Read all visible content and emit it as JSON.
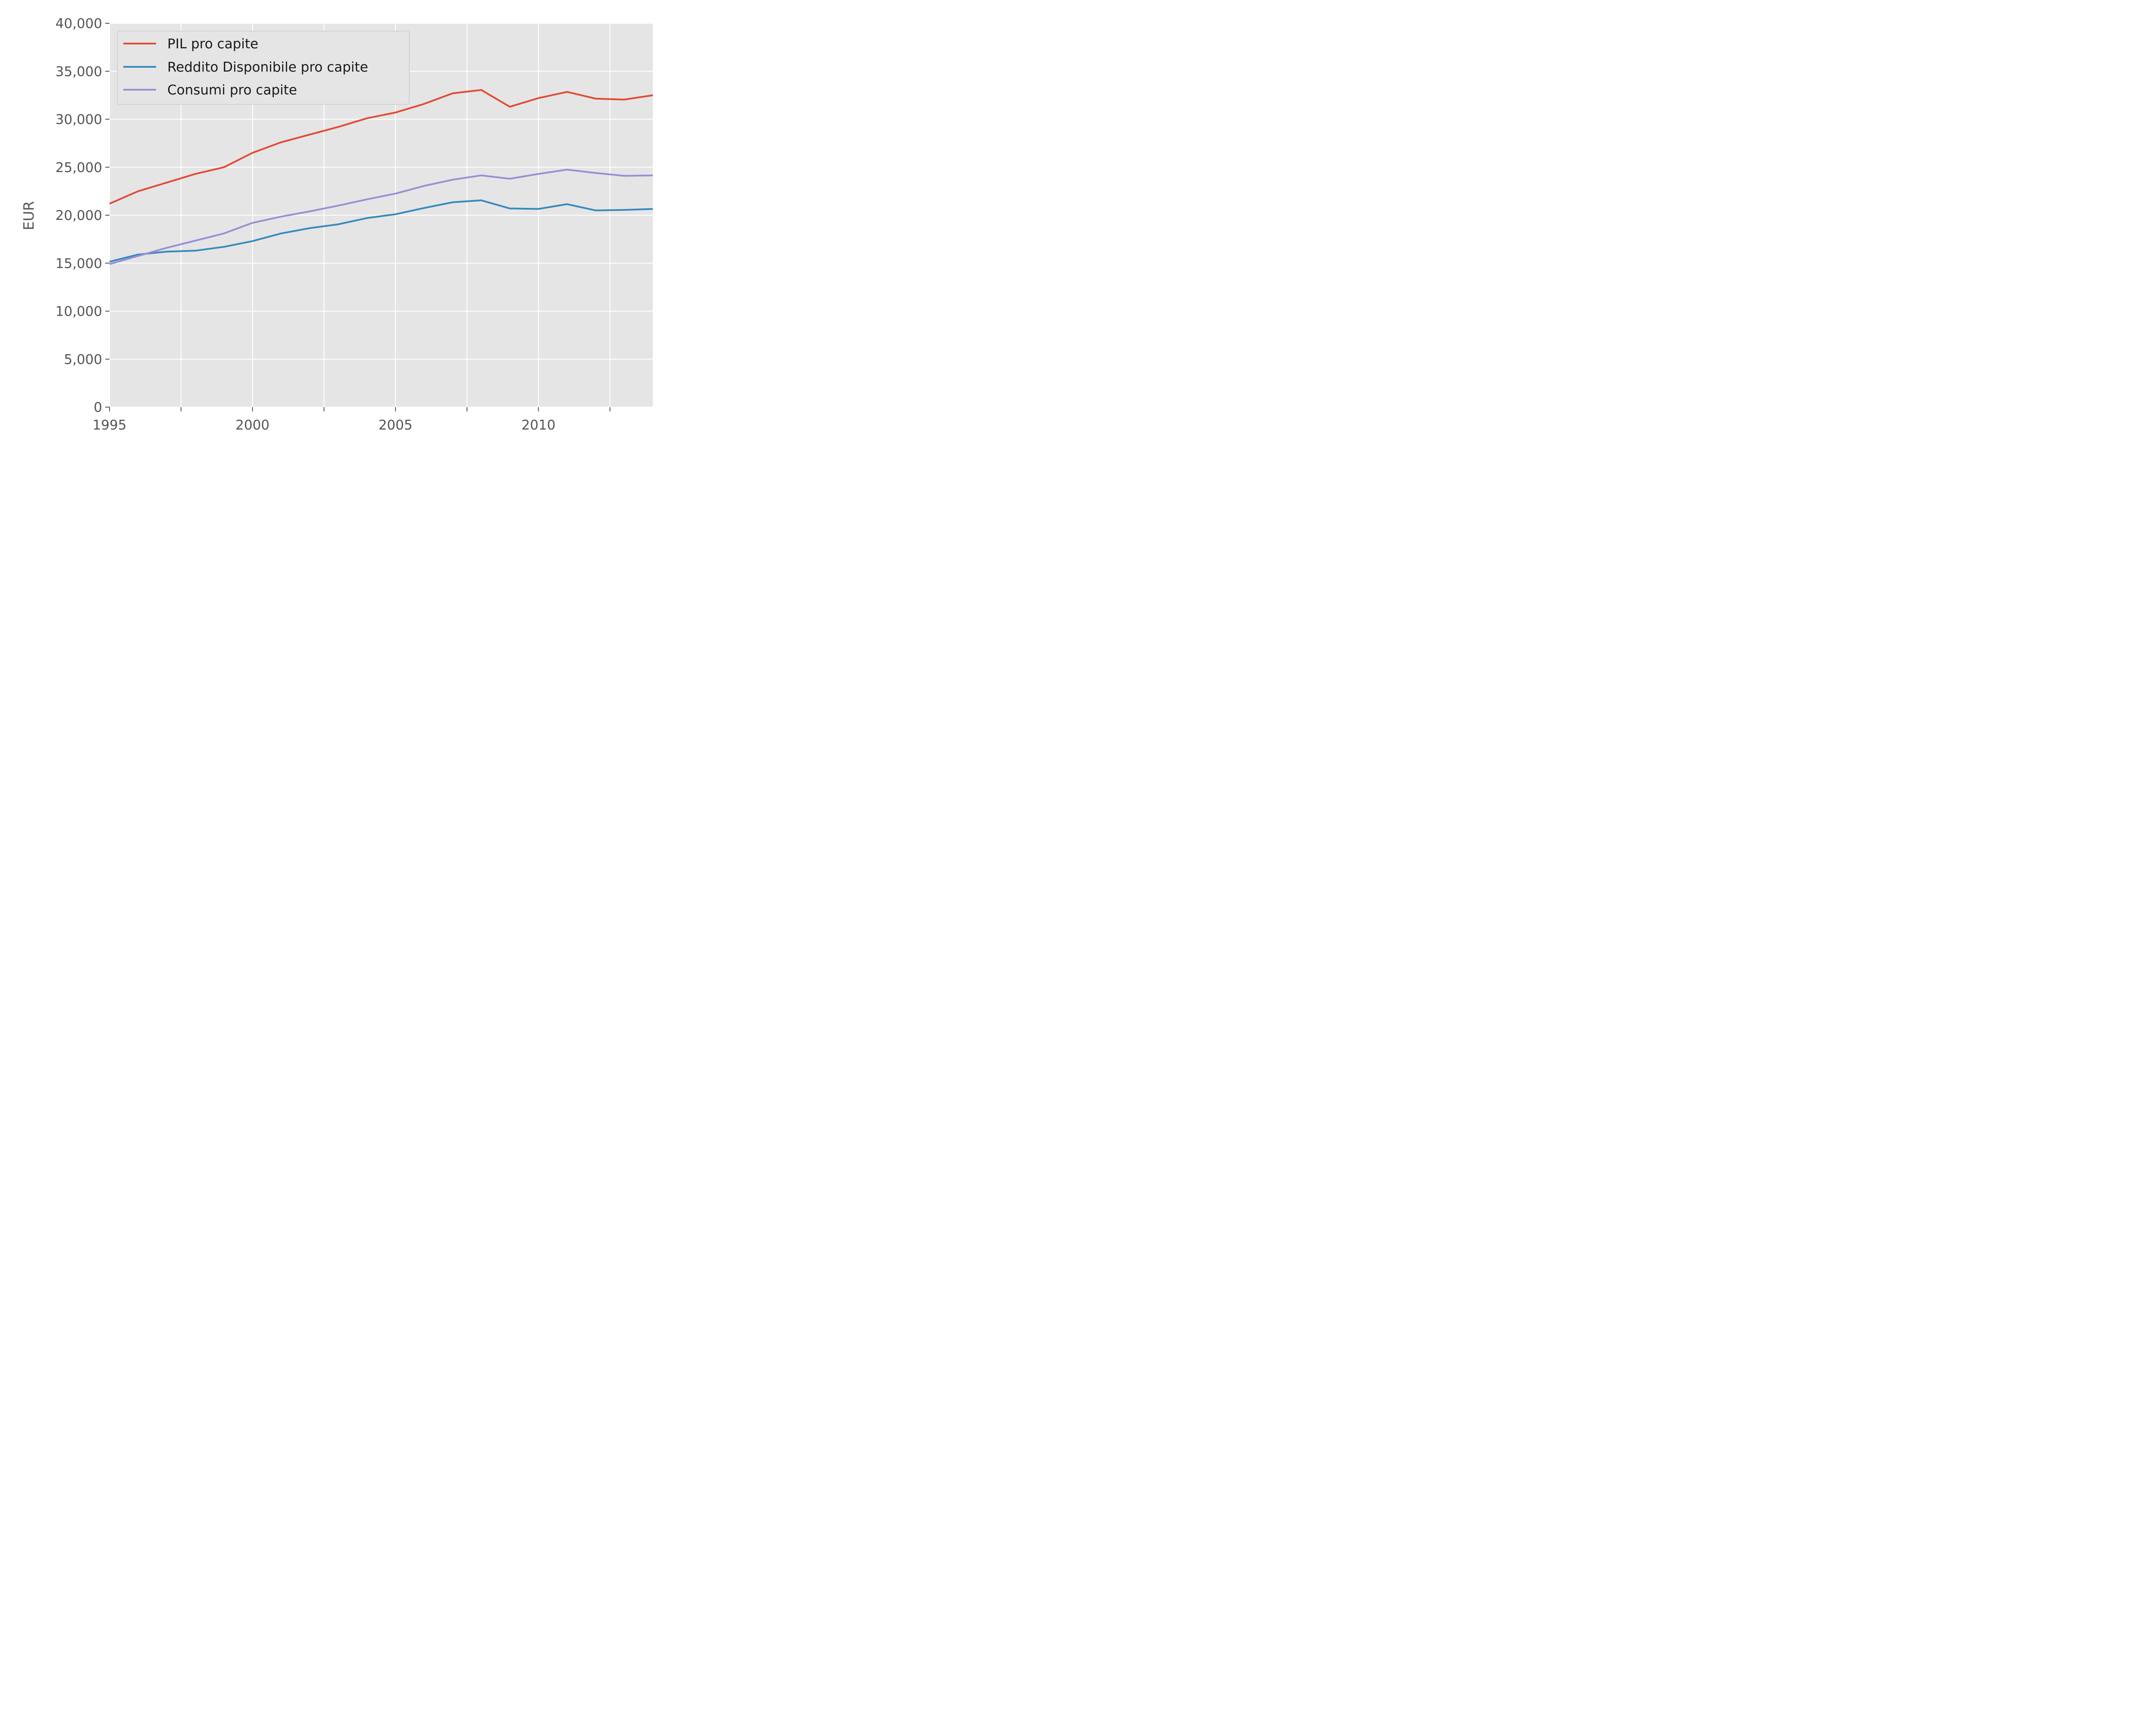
{
  "chart_data": {
    "type": "line",
    "title": "",
    "xlabel": "",
    "ylabel": "EUR",
    "x": [
      1995,
      1996,
      1997,
      1998,
      1999,
      2000,
      2001,
      2002,
      2003,
      2004,
      2005,
      2006,
      2007,
      2008,
      2009,
      2010,
      2011,
      2012,
      2013,
      2014
    ],
    "xlim": [
      1995,
      2014
    ],
    "ylim": [
      0,
      40000
    ],
    "x_ticks": [
      1995,
      1997.5,
      2000,
      2002.5,
      2005,
      2007.5,
      2010,
      2012.5
    ],
    "x_tick_labels": [
      "1995",
      "",
      "2000",
      "",
      "2005",
      "",
      "2010",
      ""
    ],
    "y_ticks": [
      0,
      5000,
      10000,
      15000,
      20000,
      25000,
      30000,
      35000,
      40000
    ],
    "y_tick_labels": [
      "0",
      "5,000",
      "10,000",
      "15,000",
      "20,000",
      "25,000",
      "30,000",
      "35,000",
      "40,000"
    ],
    "grid": true,
    "legend_position": "top-left",
    "background": "#e5e5e5",
    "series": [
      {
        "name": "PIL pro capite",
        "color": "#e24a33",
        "values": [
          21200,
          22500,
          23400,
          24300,
          25000,
          26500,
          27600,
          28400,
          29200,
          30100,
          30700,
          31600,
          32700,
          33050,
          31300,
          32200,
          32850,
          32150,
          32050,
          32500
        ]
      },
      {
        "name": "Reddito Disponibile pro capite",
        "color": "#348abd",
        "values": [
          15150,
          15900,
          16200,
          16300,
          16700,
          17300,
          18100,
          18650,
          19050,
          19700,
          20100,
          20750,
          21350,
          21550,
          20700,
          20650,
          21150,
          20500,
          20550,
          20650
        ]
      },
      {
        "name": "Consumi pro capite",
        "color": "#988ed5",
        "values": [
          14900,
          15750,
          16600,
          17350,
          18100,
          19200,
          19850,
          20400,
          21000,
          21650,
          22250,
          23050,
          23700,
          24150,
          23800,
          24300,
          24750,
          24400,
          24100,
          24150
        ]
      }
    ]
  }
}
